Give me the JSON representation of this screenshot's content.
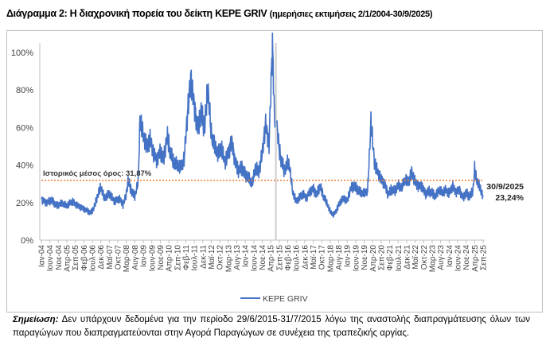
{
  "title": {
    "main": "Διάγραμμα 2: Η διαχρονική πορεία του δείκτη ΚΕΡΕ GRIV",
    "subtitle": "(ημερήσιες εκτιμήσεις 2/1/2004-30/9/2025)"
  },
  "note": {
    "label": "Σημείωση:",
    "text": "Δεν υπάρχουν δεδομένα για την περίοδο 29/6/2015-31/7/2015 λόγω της αναστολής διαπραγμάτευσης όλων των παραγώγων που διαπραγματεύονται στην Αγορά Παραγώγων σε συνέχεια της τραπεζικής αργίας."
  },
  "chart_data": {
    "type": "line",
    "title": "Διάγραμμα 2: Η διαχρονική πορεία του δείκτη ΚΕΡΕ GRIV",
    "xlabel": "",
    "ylabel": "",
    "ylim": [
      0,
      100
    ],
    "y_ticks": [
      "0%",
      "20%",
      "40%",
      "60%",
      "80%",
      "100%"
    ],
    "x_unit": "months since Jan 2004",
    "xlim": [
      0,
      260
    ],
    "x_tick_labels": [
      "Ιαν-04",
      "Ιουν-04",
      "Νοε-04",
      "Απρ-05",
      "Σεπ-05",
      "Φεβ-06",
      "Ιουλ-06",
      "Δεκ-06",
      "Μαϊ-07",
      "Οκτ-07",
      "Μαρ-08",
      "Αυγ-08",
      "Ιαν-09",
      "Ιουν-09",
      "Νοε-09",
      "Απρ-10",
      "Σεπ-10",
      "Φεβ-11",
      "Ιουλ-11",
      "Δεκ-11",
      "Μαϊ-12",
      "Οκτ-12",
      "Μαρ-13",
      "Αυγ-13",
      "Ιαν-14",
      "Ιουν-14",
      "Νοε-14",
      "Απρ-15",
      "Σεπ-15",
      "Φεβ-16",
      "Ιουλ-16",
      "Δεκ-16",
      "Μαϊ-17",
      "Οκτ-17",
      "Μαρ-18",
      "Αυγ-18",
      "Ιαν-19",
      "Ιουν-19",
      "Νοε-19",
      "Απρ-20",
      "Σεπ-20",
      "Φεβ-21",
      "Ιουλ-21",
      "Δεκ-21",
      "Μαϊ-22",
      "Οκτ-22",
      "Μαρ-23",
      "Αυγ-23",
      "Ιαν-24",
      "Ιουν-24",
      "Νοε-24",
      "Απρ-25",
      "Σεπ-25"
    ],
    "grid": false,
    "legend": {
      "position": "bottom",
      "entries": [
        "ΚΕΡΕ GRIV"
      ]
    },
    "series": [
      {
        "name": "ΚΕΡΕ GRIV",
        "color": "#4472c4",
        "gap_months": [
          137.5,
          138.5
        ],
        "points": [
          [
            0,
            21
          ],
          [
            3,
            20
          ],
          [
            6,
            22
          ],
          [
            9,
            19
          ],
          [
            12,
            20
          ],
          [
            15,
            18
          ],
          [
            18,
            20
          ],
          [
            21,
            18
          ],
          [
            24,
            17
          ],
          [
            27,
            16
          ],
          [
            29,
            15
          ],
          [
            31,
            18
          ],
          [
            33,
            24
          ],
          [
            35,
            29
          ],
          [
            37,
            22
          ],
          [
            40,
            24
          ],
          [
            43,
            20
          ],
          [
            46,
            22
          ],
          [
            48,
            19
          ],
          [
            50,
            25
          ],
          [
            51,
            33
          ],
          [
            53,
            27
          ],
          [
            55,
            24
          ],
          [
            57,
            32
          ],
          [
            58,
            64
          ],
          [
            60,
            55
          ],
          [
            62,
            48
          ],
          [
            64,
            52
          ],
          [
            66,
            45
          ],
          [
            68,
            42
          ],
          [
            70,
            48
          ],
          [
            72,
            44
          ],
          [
            74,
            58
          ],
          [
            76,
            48
          ],
          [
            78,
            42
          ],
          [
            80,
            40
          ],
          [
            82,
            38
          ],
          [
            84,
            42
          ],
          [
            86,
            65
          ],
          [
            88,
            84
          ],
          [
            90,
            70
          ],
          [
            92,
            60
          ],
          [
            94,
            70
          ],
          [
            96,
            62
          ],
          [
            98,
            84
          ],
          [
            100,
            58
          ],
          [
            102,
            50
          ],
          [
            104,
            45
          ],
          [
            106,
            48
          ],
          [
            108,
            40
          ],
          [
            110,
            45
          ],
          [
            112,
            52
          ],
          [
            114,
            42
          ],
          [
            116,
            38
          ],
          [
            118,
            40
          ],
          [
            120,
            36
          ],
          [
            122,
            34
          ],
          [
            124,
            30
          ],
          [
            126,
            38
          ],
          [
            128,
            35
          ],
          [
            130,
            45
          ],
          [
            132,
            60
          ],
          [
            134,
            50
          ],
          [
            136,
            104
          ],
          [
            137.4,
            60
          ],
          [
            138.6,
            62
          ],
          [
            140,
            50
          ],
          [
            141,
            45
          ],
          [
            143,
            38
          ],
          [
            145,
            42
          ],
          [
            146,
            40
          ],
          [
            148,
            25
          ],
          [
            150,
            20
          ],
          [
            152,
            22
          ],
          [
            154,
            24
          ],
          [
            156,
            22
          ],
          [
            158,
            26
          ],
          [
            160,
            28
          ],
          [
            162,
            25
          ],
          [
            164,
            30
          ],
          [
            166,
            24
          ],
          [
            168,
            20
          ],
          [
            170,
            15
          ],
          [
            172,
            13
          ],
          [
            174,
            16
          ],
          [
            176,
            20
          ],
          [
            178,
            22
          ],
          [
            180,
            21
          ],
          [
            182,
            28
          ],
          [
            184,
            30
          ],
          [
            186,
            28
          ],
          [
            188,
            26
          ],
          [
            190,
            25
          ],
          [
            192,
            26
          ],
          [
            194,
            62
          ],
          [
            196,
            40
          ],
          [
            198,
            35
          ],
          [
            200,
            32
          ],
          [
            202,
            30
          ],
          [
            204,
            25
          ],
          [
            206,
            28
          ],
          [
            208,
            27
          ],
          [
            210,
            30
          ],
          [
            212,
            28
          ],
          [
            214,
            32
          ],
          [
            216,
            30
          ],
          [
            218,
            35
          ],
          [
            220,
            30
          ],
          [
            222,
            28
          ],
          [
            224,
            29
          ],
          [
            226,
            25
          ],
          [
            228,
            27
          ],
          [
            230,
            26
          ],
          [
            232,
            24
          ],
          [
            234,
            27
          ],
          [
            236,
            25
          ],
          [
            238,
            26
          ],
          [
            240,
            24
          ],
          [
            242,
            28
          ],
          [
            244,
            25
          ],
          [
            246,
            27
          ],
          [
            248,
            23
          ],
          [
            250,
            26
          ],
          [
            252,
            24
          ],
          [
            254,
            27
          ],
          [
            255,
            39
          ],
          [
            256,
            33
          ],
          [
            258,
            28
          ],
          [
            259,
            25
          ],
          [
            260,
            23.24
          ]
        ]
      }
    ],
    "reference_line": {
      "value": 31.87,
      "label": "Ιστορικός μέσος όρος: 31,87%",
      "color": "#ed7d31"
    },
    "annotations": [
      {
        "date": "30/9/2025",
        "value": "23,24%"
      }
    ]
  }
}
